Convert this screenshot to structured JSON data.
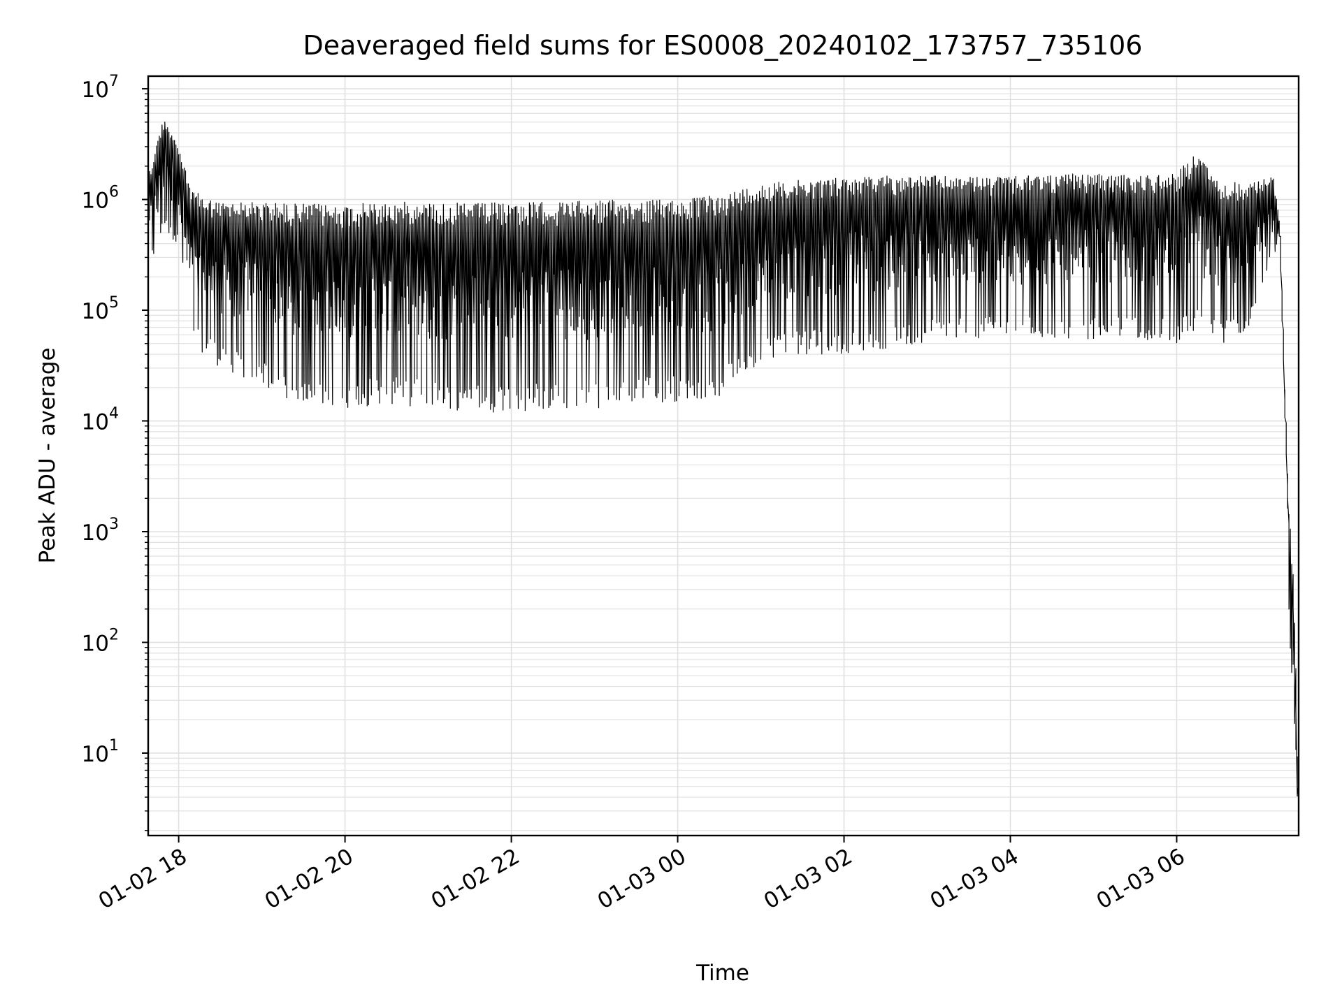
{
  "chart_data": {
    "type": "line",
    "title": "Deaveraged field sums for ES0008_20240102_173757_735106",
    "xlabel": "Time",
    "ylabel": "Peak ADU - average",
    "yscale": "log",
    "grid": true,
    "grid_minor": true,
    "line_color": "#000000",
    "xlim": [
      "2024-01-02 17:38",
      "2024-01-03 07:28"
    ],
    "ylim": [
      1.8,
      13000000
    ],
    "x_ticks": [
      {
        "value": "2024-01-02 18:00",
        "label": "01-02 18"
      },
      {
        "value": "2024-01-02 20:00",
        "label": "01-02 20"
      },
      {
        "value": "2024-01-02 22:00",
        "label": "01-02 22"
      },
      {
        "value": "2024-01-03 00:00",
        "label": "01-03 00"
      },
      {
        "value": "2024-01-03 02:00",
        "label": "01-03 02"
      },
      {
        "value": "2024-01-03 04:00",
        "label": "01-03 04"
      },
      {
        "value": "2024-01-03 06:00",
        "label": "01-03 06"
      }
    ],
    "y_ticks": [
      {
        "value": 10,
        "base": "10",
        "exp": "1"
      },
      {
        "value": 100,
        "base": "10",
        "exp": "2"
      },
      {
        "value": 1000,
        "base": "10",
        "exp": "3"
      },
      {
        "value": 10000,
        "base": "10",
        "exp": "4"
      },
      {
        "value": 100000,
        "base": "10",
        "exp": "5"
      },
      {
        "value": 1000000,
        "base": "10",
        "exp": "6"
      },
      {
        "value": 10000000,
        "base": "10",
        "exp": "7"
      }
    ],
    "series": [
      {
        "envelope": [
          {
            "x": "2024-01-02 17:38",
            "upper": 1500000,
            "lower": 200000
          },
          {
            "x": "2024-01-02 17:50",
            "upper": 6000000,
            "lower": 500000
          },
          {
            "x": "2024-01-02 18:00",
            "upper": 3000000,
            "lower": 400000
          },
          {
            "x": "2024-01-02 18:10",
            "upper": 1200000,
            "lower": 50000
          },
          {
            "x": "2024-01-02 18:30",
            "upper": 950000,
            "lower": 30000
          },
          {
            "x": "2024-01-02 19:00",
            "upper": 950000,
            "lower": 20000
          },
          {
            "x": "2024-01-02 19:30",
            "upper": 920000,
            "lower": 14000
          },
          {
            "x": "2024-01-02 20:00",
            "upper": 900000,
            "lower": 13000
          },
          {
            "x": "2024-01-02 20:30",
            "upper": 950000,
            "lower": 14000
          },
          {
            "x": "2024-01-02 21:00",
            "upper": 950000,
            "lower": 13000
          },
          {
            "x": "2024-01-02 21:30",
            "upper": 920000,
            "lower": 12000
          },
          {
            "x": "2024-01-02 22:00",
            "upper": 950000,
            "lower": 12000
          },
          {
            "x": "2024-01-02 22:30",
            "upper": 950000,
            "lower": 12000
          },
          {
            "x": "2024-01-02 23:00",
            "upper": 980000,
            "lower": 13000
          },
          {
            "x": "2024-01-02 23:30",
            "upper": 1000000,
            "lower": 14000
          },
          {
            "x": "2024-01-03 00:00",
            "upper": 1000000,
            "lower": 15000
          },
          {
            "x": "2024-01-03 00:30",
            "upper": 1100000,
            "lower": 16000
          },
          {
            "x": "2024-01-03 01:00",
            "upper": 1400000,
            "lower": 35000
          },
          {
            "x": "2024-01-03 01:30",
            "upper": 1500000,
            "lower": 40000
          },
          {
            "x": "2024-01-03 02:00",
            "upper": 1600000,
            "lower": 40000
          },
          {
            "x": "2024-01-03 02:30",
            "upper": 1650000,
            "lower": 45000
          },
          {
            "x": "2024-01-03 03:00",
            "upper": 1650000,
            "lower": 50000
          },
          {
            "x": "2024-01-03 03:30",
            "upper": 1600000,
            "lower": 55000
          },
          {
            "x": "2024-01-03 04:00",
            "upper": 1600000,
            "lower": 55000
          },
          {
            "x": "2024-01-03 04:30",
            "upper": 1700000,
            "lower": 55000
          },
          {
            "x": "2024-01-03 05:00",
            "upper": 1700000,
            "lower": 55000
          },
          {
            "x": "2024-01-03 05:30",
            "upper": 1650000,
            "lower": 55000
          },
          {
            "x": "2024-01-03 06:00",
            "upper": 1750000,
            "lower": 50000
          },
          {
            "x": "2024-01-03 06:15",
            "upper": 2700000,
            "lower": 60000
          },
          {
            "x": "2024-01-03 06:30",
            "upper": 1500000,
            "lower": 50000
          },
          {
            "x": "2024-01-03 06:50",
            "upper": 1400000,
            "lower": 55000
          },
          {
            "x": "2024-01-03 07:10",
            "upper": 1600000,
            "lower": 300000
          },
          {
            "x": "2024-01-03 07:15",
            "upper": 600000,
            "lower": 400000
          },
          {
            "x": "2024-01-03 07:20",
            "upper": 4000,
            "lower": 2000
          },
          {
            "x": "2024-01-03 07:25",
            "upper": 300,
            "lower": 3.8
          },
          {
            "x": "2024-01-03 07:28",
            "upper": 4,
            "lower": 3.8
          }
        ]
      }
    ]
  }
}
